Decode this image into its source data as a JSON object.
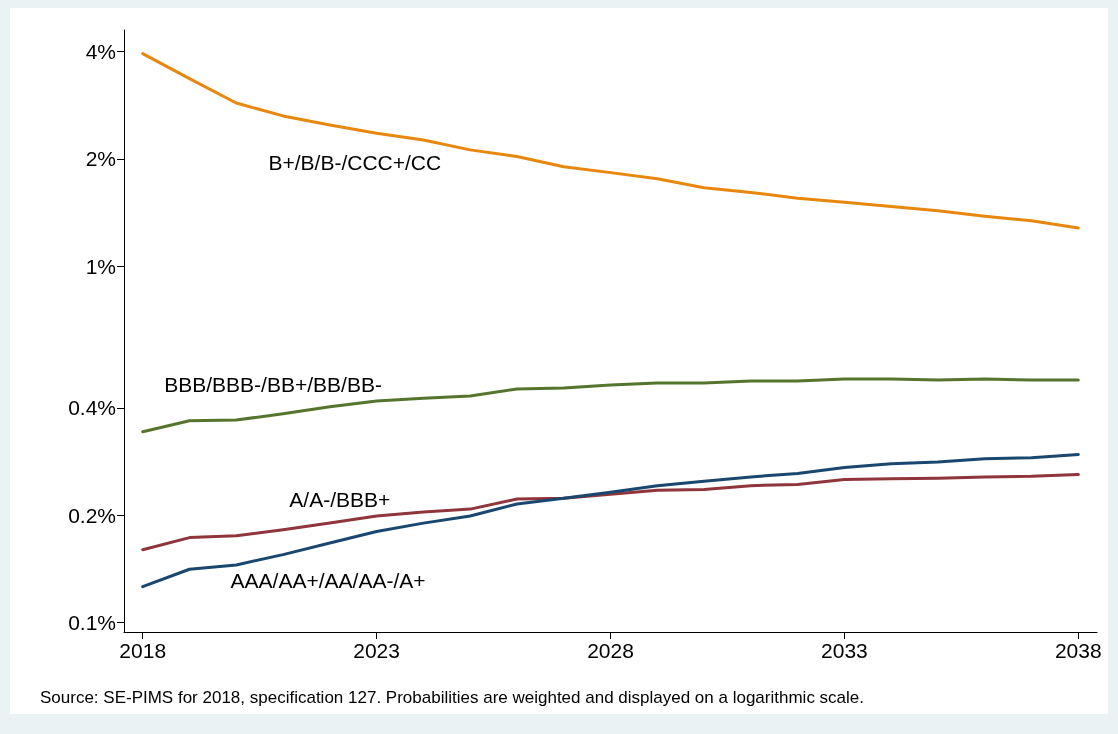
{
  "chart_data": {
    "type": "line",
    "x": [
      2018,
      2019,
      2020,
      2021,
      2022,
      2023,
      2024,
      2025,
      2026,
      2027,
      2028,
      2029,
      2030,
      2031,
      2032,
      2033,
      2034,
      2035,
      2036,
      2037,
      2038
    ],
    "series": [
      {
        "name": "B+/B/B-/CCC+/CC",
        "color": "#e8870e",
        "values": [
          3.95,
          3.36,
          2.87,
          2.64,
          2.49,
          2.36,
          2.26,
          2.12,
          2.03,
          1.9,
          1.83,
          1.76,
          1.66,
          1.61,
          1.55,
          1.51,
          1.47,
          1.43,
          1.38,
          1.34,
          1.28
        ]
      },
      {
        "name": "BBB/BBB-/BB+/BB/BB-",
        "color": "#55752f",
        "values": [
          0.343,
          0.368,
          0.37,
          0.385,
          0.403,
          0.418,
          0.426,
          0.432,
          0.452,
          0.455,
          0.464,
          0.47,
          0.47,
          0.476,
          0.476,
          0.482,
          0.482,
          0.479,
          0.482,
          0.479,
          0.479
        ]
      },
      {
        "name": "A/A-/BBB+",
        "color": "#90353b",
        "values": [
          0.16,
          0.173,
          0.175,
          0.182,
          0.19,
          0.199,
          0.204,
          0.208,
          0.222,
          0.223,
          0.229,
          0.235,
          0.236,
          0.242,
          0.244,
          0.252,
          0.253,
          0.254,
          0.256,
          0.257,
          0.26
        ]
      },
      {
        "name": "AAA/AA+/AA/AA-/A+",
        "color": "#1a476f",
        "values": [
          0.126,
          0.141,
          0.145,
          0.155,
          0.167,
          0.18,
          0.19,
          0.199,
          0.215,
          0.223,
          0.232,
          0.242,
          0.249,
          0.256,
          0.262,
          0.272,
          0.279,
          0.282,
          0.288,
          0.29,
          0.296
        ]
      }
    ],
    "xlim": [
      2017.6,
      2038.4
    ],
    "xticks": [
      2018,
      2023,
      2028,
      2033,
      2038
    ],
    "ylim": [
      0.094,
      4.6
    ],
    "yticks": [
      {
        "value": 0.1,
        "label": "0.1%"
      },
      {
        "value": 0.2,
        "label": "0.2%"
      },
      {
        "value": 0.4,
        "label": "0.4%"
      },
      {
        "value": 1,
        "label": "1%"
      },
      {
        "value": 2,
        "label": "2%"
      },
      {
        "value": 4,
        "label": "4%"
      }
    ],
    "log": "y",
    "grid": false,
    "legend": false,
    "marker": "none",
    "line_style": "solid",
    "annotations": [
      "Source: SE-PIMS for 2018, specification 127. Probabilities are weighted and displayed on a logarithmic scale."
    ]
  }
}
